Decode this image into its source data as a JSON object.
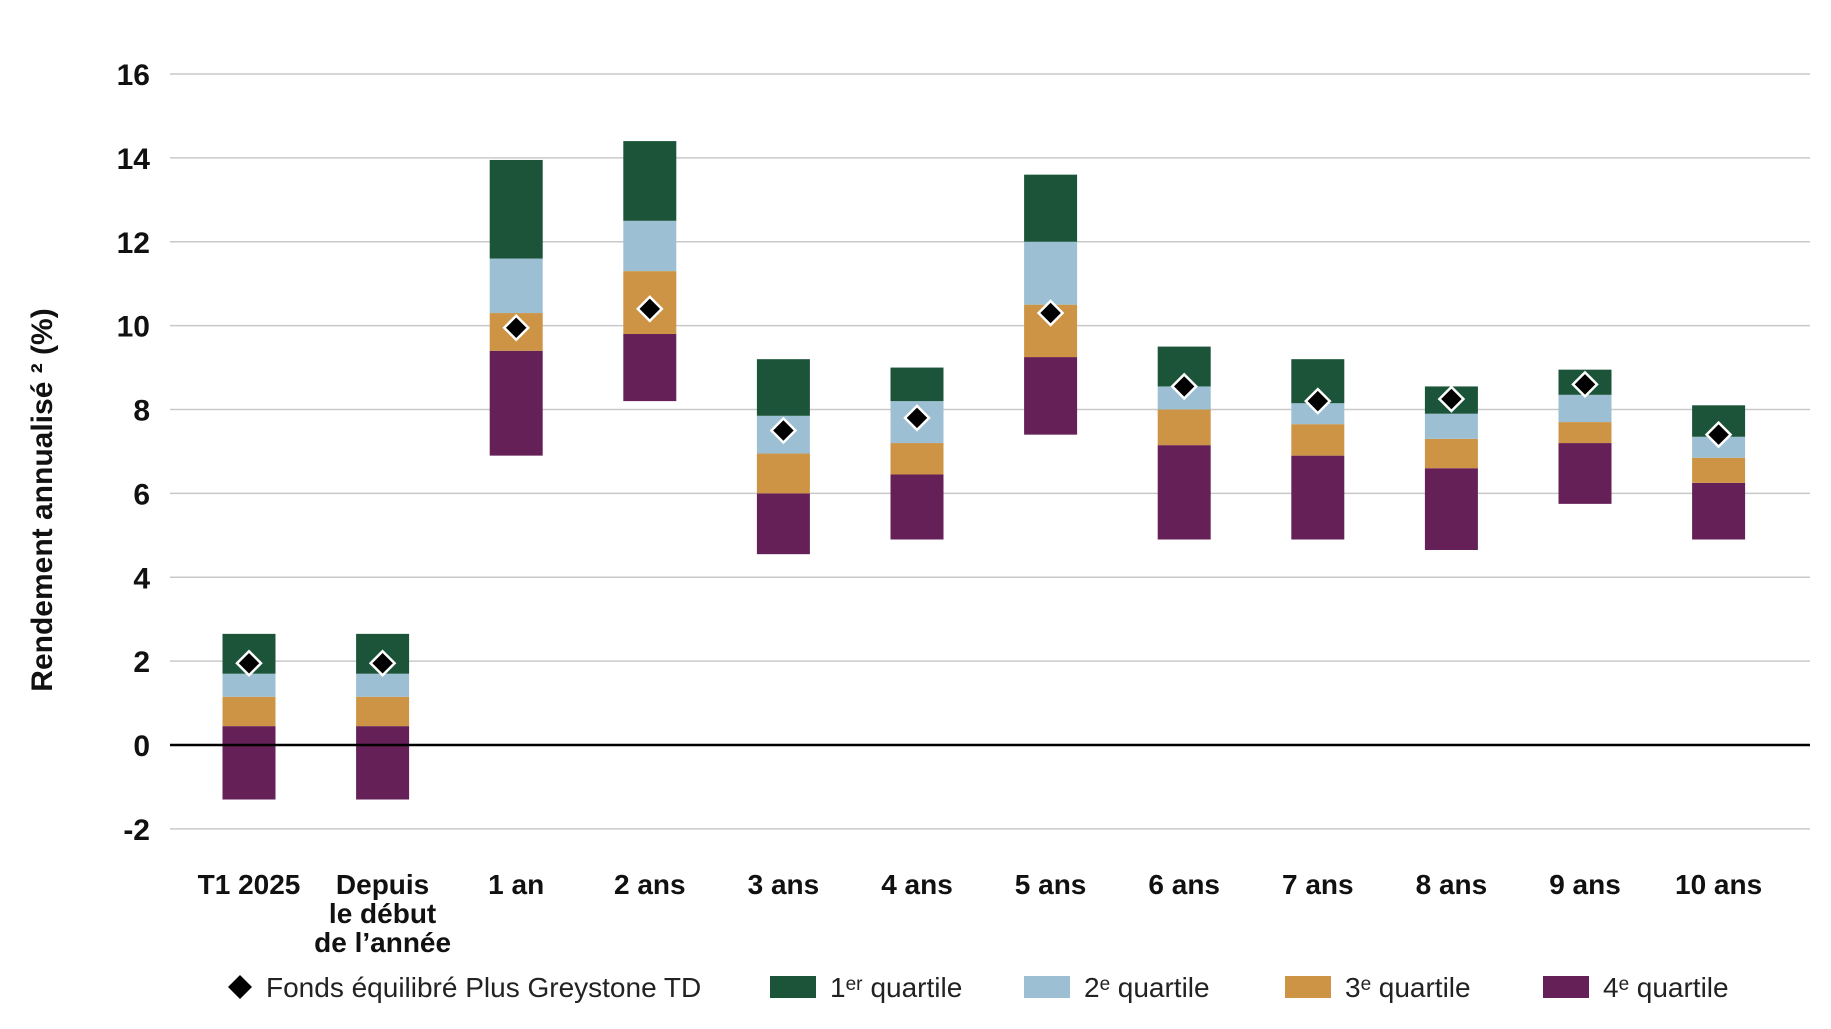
{
  "chart_data": {
    "type": "bar",
    "subtype": "floating-stacked-quartile",
    "title": "",
    "ylabel": "Rendement annualisé ² (%)",
    "xlabel": "",
    "ylim": [
      -2,
      16
    ],
    "yticks": [
      -2,
      0,
      2,
      4,
      6,
      8,
      10,
      12,
      14,
      16
    ],
    "grid": true,
    "legend_position": "bottom",
    "categories": [
      [
        "T1 2025"
      ],
      [
        "Depuis",
        "le début",
        "de l’année"
      ],
      [
        "1 an"
      ],
      [
        "2 ans"
      ],
      [
        "3 ans"
      ],
      [
        "4 ans"
      ],
      [
        "5 ans"
      ],
      [
        "6 ans"
      ],
      [
        "7 ans"
      ],
      [
        "8 ans"
      ],
      [
        "9 ans"
      ],
      [
        "10 ans"
      ]
    ],
    "quartile_bounds": [
      [
        -1.3,
        0.45,
        1.15,
        1.7,
        2.65
      ],
      [
        -1.3,
        0.45,
        1.15,
        1.7,
        2.65
      ],
      [
        6.9,
        9.4,
        10.3,
        11.6,
        13.95
      ],
      [
        8.2,
        9.8,
        11.3,
        12.5,
        14.4
      ],
      [
        4.55,
        6.0,
        6.95,
        7.85,
        9.2
      ],
      [
        4.9,
        6.45,
        7.2,
        8.2,
        9.0
      ],
      [
        7.4,
        9.25,
        10.5,
        12.0,
        13.6
      ],
      [
        4.9,
        7.15,
        8.0,
        8.55,
        9.5
      ],
      [
        4.9,
        6.9,
        7.65,
        8.15,
        9.2
      ],
      [
        4.65,
        6.6,
        7.3,
        7.9,
        8.55
      ],
      [
        5.75,
        7.2,
        7.7,
        8.35,
        8.95
      ],
      [
        4.9,
        6.25,
        6.85,
        7.35,
        8.1
      ]
    ],
    "fund_values": [
      1.95,
      1.95,
      9.95,
      10.4,
      7.5,
      7.8,
      10.3,
      8.55,
      8.2,
      8.25,
      8.6,
      7.4
    ],
    "series": [
      {
        "name": "4ᵉ quartile",
        "color": "#652157"
      },
      {
        "name": "3ᵉ quartile",
        "color": "#cc9444"
      },
      {
        "name": "2ᵉ quartile",
        "color": "#9cbfd4"
      },
      {
        "name": "1ᵉʳ quartile",
        "color": "#1b5438"
      }
    ],
    "fund_series": {
      "name": "Fonds équilibré Plus Greystone TD",
      "marker": "diamond",
      "color": "#000000"
    },
    "legend": [
      {
        "key": "fund",
        "label": "Fonds équilibré Plus Greystone TD"
      },
      {
        "key": "q1",
        "label": "1ᵉʳ quartile",
        "color": "#1b5438"
      },
      {
        "key": "q2",
        "label": "2ᵉ quartile",
        "color": "#9cbfd4"
      },
      {
        "key": "q3",
        "label": "3ᵉ quartile",
        "color": "#cc9444"
      },
      {
        "key": "q4",
        "label": "4ᵉ quartile",
        "color": "#652157"
      }
    ]
  }
}
